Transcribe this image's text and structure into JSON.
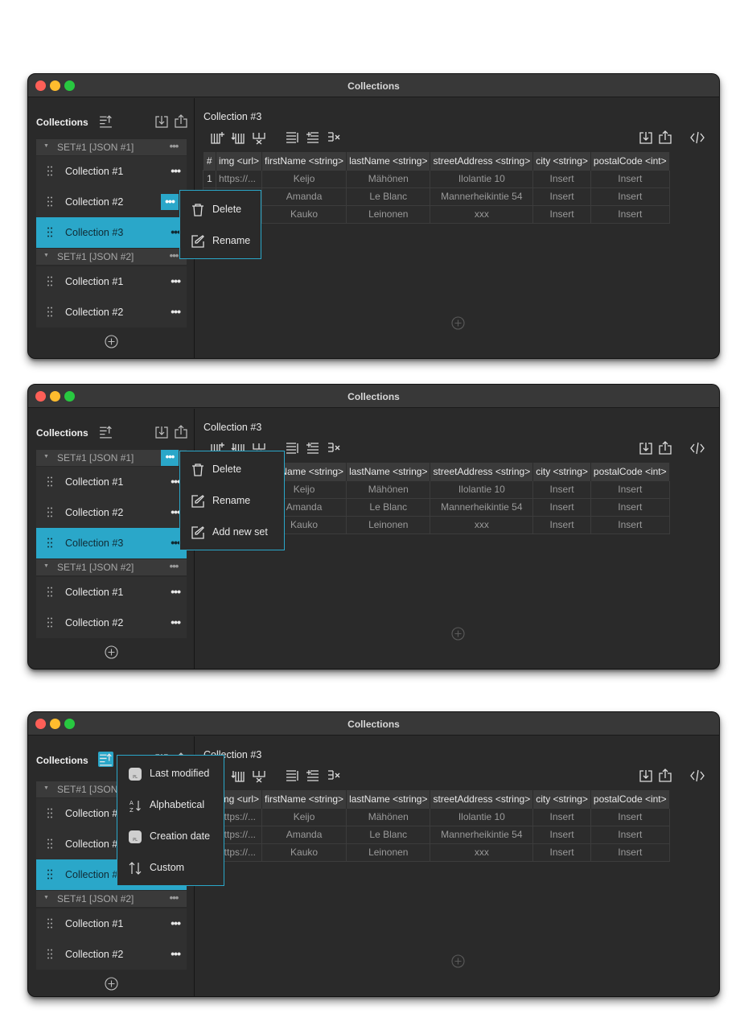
{
  "window_title": "Collections",
  "sidebar": {
    "title": "Collections",
    "sets": [
      {
        "label": "SET#1 [JSON #1]",
        "collections": [
          "Collection #1",
          "Collection #2",
          "Collection #3"
        ]
      },
      {
        "label": "SET#1 [JSON #2]",
        "collections": [
          "Collection #1",
          "Collection #2"
        ]
      }
    ],
    "selected_collection": "Collection #3"
  },
  "main": {
    "title": "Collection #3",
    "columns": [
      "#",
      "img <url>",
      "firstName <string>",
      "lastName <string>",
      "streetAddress <string>",
      "city <string>",
      "postalCode <int>"
    ],
    "rows": [
      [
        "1",
        "https://...",
        "Keijo",
        "Mähönen",
        "Ilolantie 10",
        "Insert",
        "Insert"
      ],
      [
        "",
        "https://...",
        "Amanda",
        "Le Blanc",
        "Mannerheikintie 54",
        "Insert",
        "Insert"
      ],
      [
        "",
        "https://...",
        "Kauko",
        "Leinonen",
        "xxx",
        "Insert",
        "Insert"
      ]
    ]
  },
  "popups": {
    "collection_menu": {
      "delete": "Delete",
      "rename": "Rename"
    },
    "set_menu": {
      "delete": "Delete",
      "rename": "Rename",
      "add_new_set": "Add new set"
    },
    "sort_menu": {
      "last_modified": "Last modified",
      "alphabetical": "Alphabetical",
      "creation_date": "Creation date",
      "custom": "Custom"
    }
  },
  "colors": {
    "accent": "#2aa7c9",
    "window_bg": "#2a2a2a",
    "titlebar": "#383838",
    "close": "#fe5f57",
    "minimize": "#febc2e",
    "zoom": "#28c840"
  },
  "icons": [
    "sort-icon",
    "import-icon",
    "export-icon",
    "add-column-icon",
    "insert-column-icon",
    "delete-column-icon",
    "add-row-icon",
    "insert-row-icon",
    "delete-row-icon",
    "code-icon",
    "trash-icon",
    "edit-icon",
    "plus-circle-icon",
    "drag-handle-icon"
  ]
}
